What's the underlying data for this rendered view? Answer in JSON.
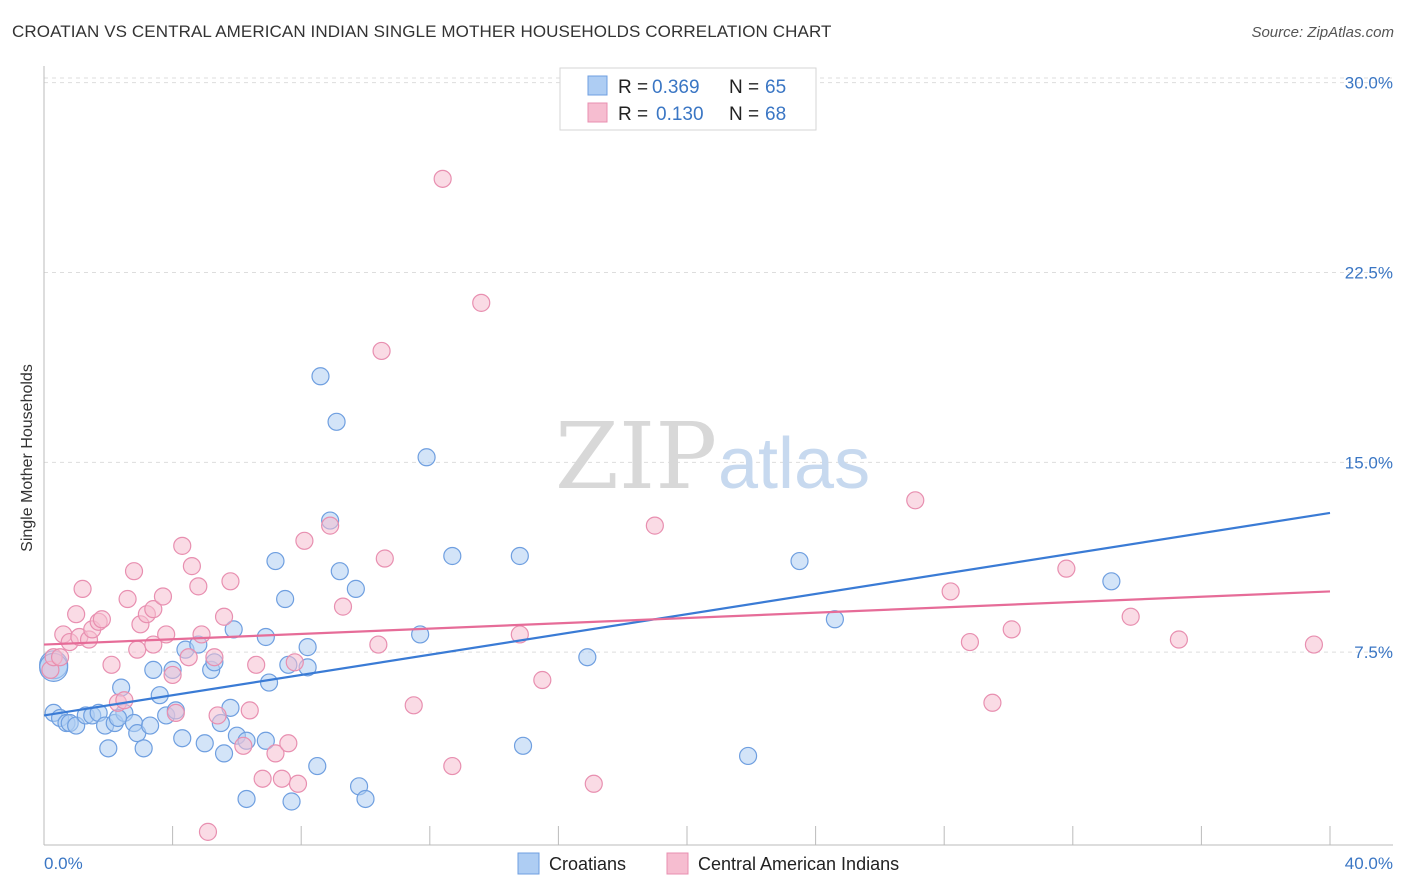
{
  "title": "CROATIAN VS CENTRAL AMERICAN INDIAN SINGLE MOTHER HOUSEHOLDS CORRELATION CHART",
  "source": "Source: ZipAtlas.com",
  "watermark": {
    "zip": "ZIP",
    "atlas": "atlas"
  },
  "legend_box": [
    {
      "r_label": "R =",
      "r_value": "0.369",
      "n_label": "N =",
      "n_value": "65"
    },
    {
      "r_label": "R =",
      "r_value": "0.130",
      "n_label": "N =",
      "n_value": "68"
    }
  ],
  "colors": {
    "blue": "#3a7bd5",
    "blue_fill": "#aecdf3",
    "pink": "#e66c98",
    "pink_fill": "#f6bdd0",
    "axis_text": "#3a76c4"
  },
  "chart_data": {
    "type": "scatter",
    "title": "CROATIAN VS CENTRAL AMERICAN INDIAN SINGLE MOTHER HOUSEHOLDS CORRELATION CHART",
    "xlabel": "",
    "ylabel": "Single Mother Households",
    "xlim": [
      0,
      40
    ],
    "ylim": [
      0,
      30.5
    ],
    "x_tick_labels": [
      "0.0%",
      "40.0%"
    ],
    "y_ticks": [
      7.5,
      15.0,
      22.5,
      30.0
    ],
    "y_tick_labels": [
      "7.5%",
      "15.0%",
      "22.5%",
      "30.0%"
    ],
    "grid": true,
    "legend_position": "top-center",
    "series": [
      {
        "name": "Croatians",
        "color": "#3a7bd5",
        "trend": {
          "x": [
            0,
            40
          ],
          "y": [
            5.0,
            13.0
          ]
        },
        "points": [
          [
            0.3,
            7.0
          ],
          [
            0.3,
            6.9
          ],
          [
            0.3,
            5.1
          ],
          [
            0.5,
            4.9
          ],
          [
            0.7,
            4.7
          ],
          [
            0.8,
            4.7
          ],
          [
            1.0,
            4.6
          ],
          [
            1.3,
            5.0
          ],
          [
            1.5,
            5.0
          ],
          [
            1.7,
            5.1
          ],
          [
            1.9,
            4.6
          ],
          [
            2.0,
            3.7
          ],
          [
            2.2,
            4.7
          ],
          [
            2.4,
            6.1
          ],
          [
            2.5,
            5.1
          ],
          [
            2.8,
            4.7
          ],
          [
            2.9,
            4.3
          ],
          [
            3.1,
            3.7
          ],
          [
            3.3,
            4.6
          ],
          [
            3.4,
            6.8
          ],
          [
            3.6,
            5.8
          ],
          [
            3.8,
            5.0
          ],
          [
            4.0,
            6.8
          ],
          [
            4.1,
            5.2
          ],
          [
            4.3,
            4.1
          ],
          [
            4.4,
            7.6
          ],
          [
            4.8,
            7.8
          ],
          [
            5.0,
            3.9
          ],
          [
            5.2,
            6.8
          ],
          [
            5.3,
            7.1
          ],
          [
            5.5,
            4.7
          ],
          [
            5.6,
            3.5
          ],
          [
            5.8,
            5.3
          ],
          [
            5.9,
            8.4
          ],
          [
            6.0,
            4.2
          ],
          [
            6.3,
            1.7
          ],
          [
            6.3,
            4.0
          ],
          [
            6.9,
            8.1
          ],
          [
            7.0,
            6.3
          ],
          [
            7.2,
            11.1
          ],
          [
            7.5,
            9.6
          ],
          [
            7.6,
            7.0
          ],
          [
            7.7,
            1.6
          ],
          [
            8.2,
            6.9
          ],
          [
            8.2,
            7.7
          ],
          [
            8.5,
            3.0
          ],
          [
            8.6,
            18.4
          ],
          [
            8.9,
            12.7
          ],
          [
            9.1,
            16.6
          ],
          [
            9.2,
            10.7
          ],
          [
            9.7,
            10.0
          ],
          [
            9.8,
            2.2
          ],
          [
            10.0,
            1.7
          ],
          [
            11.7,
            8.2
          ],
          [
            11.9,
            15.2
          ],
          [
            12.7,
            11.3
          ],
          [
            14.8,
            11.3
          ],
          [
            14.9,
            3.8
          ],
          [
            16.9,
            7.3
          ],
          [
            21.9,
            3.4
          ],
          [
            23.5,
            11.1
          ],
          [
            24.6,
            8.8
          ],
          [
            33.2,
            10.3
          ],
          [
            2.3,
            4.9
          ],
          [
            6.9,
            4.0
          ]
        ]
      },
      {
        "name": "Central American Indians",
        "color": "#e66c98",
        "trend": {
          "x": [
            0,
            40
          ],
          "y": [
            7.8,
            9.9
          ]
        },
        "points": [
          [
            0.2,
            6.8
          ],
          [
            0.3,
            7.3
          ],
          [
            0.5,
            7.3
          ],
          [
            0.6,
            8.2
          ],
          [
            0.8,
            7.9
          ],
          [
            1.0,
            9.0
          ],
          [
            1.1,
            8.1
          ],
          [
            1.2,
            10.0
          ],
          [
            1.4,
            8.0
          ],
          [
            1.5,
            8.4
          ],
          [
            1.7,
            8.7
          ],
          [
            1.8,
            8.8
          ],
          [
            2.1,
            7.0
          ],
          [
            2.3,
            5.5
          ],
          [
            2.5,
            5.6
          ],
          [
            2.6,
            9.6
          ],
          [
            2.8,
            10.7
          ],
          [
            2.9,
            7.6
          ],
          [
            3.0,
            8.6
          ],
          [
            3.2,
            9.0
          ],
          [
            3.4,
            9.2
          ],
          [
            3.4,
            7.8
          ],
          [
            3.7,
            9.7
          ],
          [
            3.8,
            8.2
          ],
          [
            4.0,
            6.6
          ],
          [
            4.1,
            5.1
          ],
          [
            4.3,
            11.7
          ],
          [
            4.5,
            7.3
          ],
          [
            4.6,
            10.9
          ],
          [
            4.8,
            10.1
          ],
          [
            4.9,
            8.2
          ],
          [
            5.1,
            0.4
          ],
          [
            5.3,
            7.3
          ],
          [
            5.4,
            5.0
          ],
          [
            5.6,
            8.9
          ],
          [
            5.8,
            10.3
          ],
          [
            6.2,
            3.8
          ],
          [
            6.4,
            5.2
          ],
          [
            6.6,
            7.0
          ],
          [
            6.8,
            2.5
          ],
          [
            7.2,
            3.5
          ],
          [
            7.4,
            2.5
          ],
          [
            7.6,
            3.9
          ],
          [
            7.8,
            7.1
          ],
          [
            7.9,
            2.3
          ],
          [
            8.1,
            11.9
          ],
          [
            8.9,
            12.5
          ],
          [
            9.3,
            9.3
          ],
          [
            10.4,
            7.8
          ],
          [
            10.5,
            19.4
          ],
          [
            10.6,
            11.2
          ],
          [
            11.5,
            5.4
          ],
          [
            12.4,
            26.2
          ],
          [
            12.7,
            3.0
          ],
          [
            13.6,
            21.3
          ],
          [
            14.8,
            8.2
          ],
          [
            15.5,
            6.4
          ],
          [
            17.1,
            2.3
          ],
          [
            19.0,
            12.5
          ],
          [
            27.1,
            13.5
          ],
          [
            28.2,
            9.9
          ],
          [
            28.8,
            7.9
          ],
          [
            29.5,
            5.5
          ],
          [
            30.1,
            8.4
          ],
          [
            31.8,
            10.8
          ],
          [
            33.8,
            8.9
          ],
          [
            35.3,
            8.0
          ],
          [
            39.5,
            7.8
          ]
        ]
      }
    ]
  }
}
